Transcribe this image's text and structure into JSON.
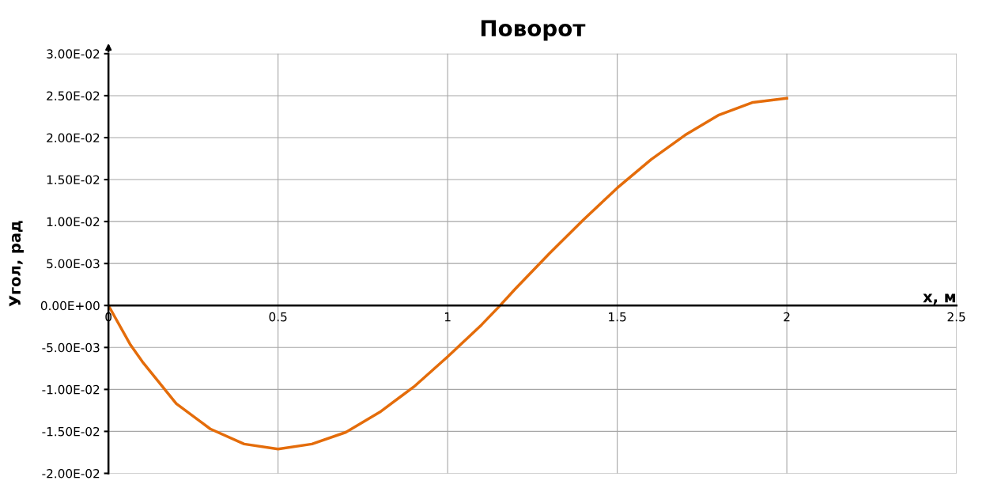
{
  "chart_data": {
    "type": "line",
    "title": "Поворот",
    "xlabel": "x, м",
    "ylabel": "Угол, рад",
    "x": [
      0,
      0.065,
      0.1,
      0.2,
      0.3,
      0.4,
      0.5,
      0.6,
      0.7,
      0.8,
      0.9,
      1.0,
      1.1,
      1.15,
      1.2,
      1.3,
      1.4,
      1.5,
      1.6,
      1.7,
      1.8,
      1.9,
      2.0
    ],
    "series": [
      {
        "color": "#e46c0a",
        "values": [
          0,
          -0.0047,
          -0.0067,
          -0.0117,
          -0.0147,
          -0.0165,
          -0.0171,
          -0.0165,
          -0.0151,
          -0.0127,
          -0.0097,
          -0.0061,
          -0.0023,
          -0.0002,
          0.002,
          0.0062,
          0.0102,
          0.014,
          0.0174,
          0.0203,
          0.0227,
          0.0242,
          0.0247
        ]
      }
    ],
    "xlim": [
      0,
      2.5
    ],
    "xticks": [
      0,
      0.5,
      1,
      1.5,
      2,
      2.5
    ],
    "ylim": [
      -0.02,
      0.03
    ],
    "yticks": [
      {
        "value": -0.02,
        "label": "-2.00E-02"
      },
      {
        "value": -0.015,
        "label": "-1.50E-02"
      },
      {
        "value": -0.01,
        "label": "-1.00E-02"
      },
      {
        "value": -0.005,
        "label": "-5.00E-03"
      },
      {
        "value": 0,
        "label": "0.00E+00"
      },
      {
        "value": 0.005,
        "label": "5.00E-03"
      },
      {
        "value": 0.01,
        "label": "1.00E-02"
      },
      {
        "value": 0.015,
        "label": "1.50E-02"
      },
      {
        "value": 0.02,
        "label": "2.00E-02"
      },
      {
        "value": 0.025,
        "label": "2.50E-02"
      },
      {
        "value": 0.03,
        "label": "3.00E-02"
      }
    ],
    "grid": true,
    "marker": "none",
    "line_style": "solid",
    "legend": false
  }
}
